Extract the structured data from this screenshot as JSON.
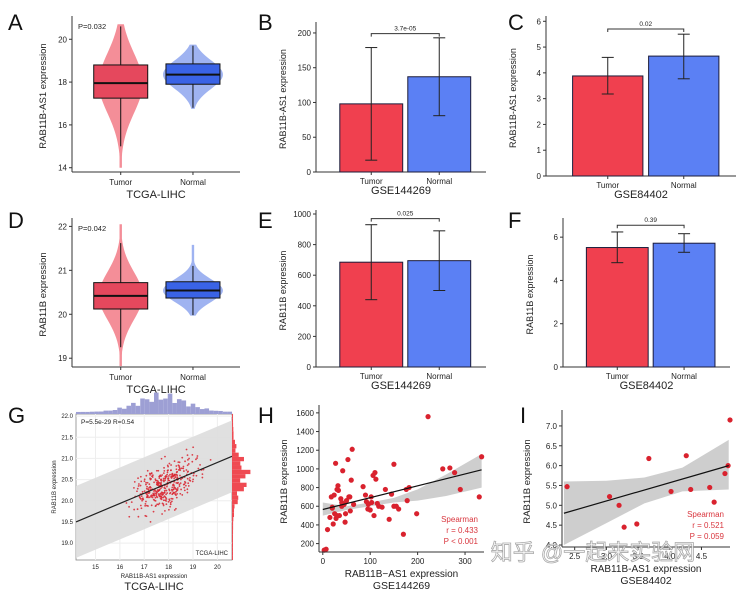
{
  "colors": {
    "tumor": "#f0404f",
    "normal": "#5b80f4",
    "tumor_violin": "#f27a86",
    "normal_violin": "#8ea6ee",
    "scatter": "#d9222e",
    "ci": "#cfcfcf",
    "annot": "#d9363e",
    "hist_top": "#9d9fd4",
    "hist_right": "#ef4a52"
  },
  "chart_data": [
    {
      "panel": "A",
      "type": "violin-box",
      "xlabel": "TCGA-LIHC",
      "ylabel": "RAB11B-AS1 expression",
      "annotation": "P=0.032",
      "categories": [
        "Tumor",
        "Normal"
      ],
      "ylim": [
        13.8,
        20.9
      ],
      "yticks": [
        14,
        16,
        18,
        20
      ],
      "groups": [
        {
          "name": "Tumor",
          "q1": 17.25,
          "median": 17.95,
          "q3": 18.8,
          "whisker_low": 15.0,
          "whisker_high": 20.6,
          "violin_min": 14.0,
          "violin_max": 20.7
        },
        {
          "name": "Normal",
          "q1": 17.9,
          "median": 18.35,
          "q3": 18.85,
          "whisker_low": 16.8,
          "whisker_high": 19.7,
          "violin_min": 16.75,
          "violin_max": 19.75
        }
      ]
    },
    {
      "panel": "B",
      "type": "bar",
      "xlabel": "GSE144269",
      "ylabel": "RAB11B-AS1 expression",
      "categories": [
        "Tumor",
        "Normal"
      ],
      "values": [
        98,
        137
      ],
      "error_low": [
        17,
        81
      ],
      "error_high": [
        179,
        193
      ],
      "ylim": [
        0,
        210
      ],
      "yticks": [
        0,
        50,
        100,
        150,
        200
      ],
      "significance": {
        "label": "3.7e-05",
        "y": 199
      }
    },
    {
      "panel": "C",
      "type": "bar",
      "xlabel": "GSE84402",
      "ylabel": "RAB11B-AS1 expression",
      "categories": [
        "Tumor",
        "Normal"
      ],
      "values": [
        3.88,
        4.65
      ],
      "error_low": [
        3.18,
        3.77
      ],
      "error_high": [
        4.6,
        5.5
      ],
      "ylim": [
        0,
        6.05
      ],
      "yticks": [
        0,
        1,
        2,
        3,
        4,
        5,
        6
      ],
      "significance": {
        "label": "0.02",
        "y": 5.7
      }
    },
    {
      "panel": "D",
      "type": "violin-box",
      "xlabel": "TCGA-LIHC",
      "ylabel": "RAB11B expression",
      "annotation": "P=0.042",
      "categories": [
        "Tumor",
        "Normal"
      ],
      "ylim": [
        18.8,
        22.1
      ],
      "yticks": [
        19,
        20,
        21,
        22
      ],
      "groups": [
        {
          "name": "Tumor",
          "q1": 20.12,
          "median": 20.42,
          "q3": 20.72,
          "whisker_low": 19.25,
          "whisker_high": 21.62,
          "violin_min": 18.82,
          "violin_max": 22.05
        },
        {
          "name": "Normal",
          "q1": 20.37,
          "median": 20.54,
          "q3": 20.74,
          "whisker_low": 19.98,
          "whisker_high": 21.1,
          "violin_min": 19.97,
          "violin_max": 21.58
        }
      ]
    },
    {
      "panel": "E",
      "type": "bar",
      "xlabel": "GSE144269",
      "ylabel": "RAB11B expression",
      "categories": [
        "Tumor",
        "Normal"
      ],
      "values": [
        685,
        695
      ],
      "error_low": [
        440,
        500
      ],
      "error_high": [
        930,
        890
      ],
      "ylim": [
        0,
        1000
      ],
      "yticks": [
        0,
        200,
        400,
        600,
        800,
        1000
      ],
      "significance": {
        "label": "0.025",
        "y": 970
      }
    },
    {
      "panel": "F",
      "type": "bar",
      "xlabel": "GSE84402",
      "ylabel": "RAB11B expression",
      "categories": [
        "Tumor",
        "Normal"
      ],
      "values": [
        5.52,
        5.72
      ],
      "error_low": [
        4.82,
        5.3
      ],
      "error_high": [
        6.24,
        6.16
      ],
      "ylim": [
        0,
        6.7
      ],
      "yticks": [
        0,
        2,
        4,
        6
      ],
      "significance": {
        "label": "0.39",
        "y": 6.55
      }
    },
    {
      "panel": "G",
      "type": "scatter",
      "title_bottom": "TCGA-LIHC",
      "xlabel": "RAB11B-AS1 expression",
      "ylabel": "RAB11B expression",
      "annotation": "P=5.5e-29 R=0.54",
      "inset_label": "TCGA-LIHC",
      "xlim": [
        14.2,
        20.6
      ],
      "ylim": [
        18.6,
        22.05
      ],
      "xticks": [
        15,
        16,
        17,
        18,
        19,
        20
      ],
      "yticks": [
        19.0,
        19.5,
        20.0,
        20.5,
        21.0,
        21.5,
        22.0
      ],
      "fit": {
        "x0": 14.2,
        "y0": 19.5,
        "x1": 20.6,
        "y1": 21.05
      },
      "band_halfwidth": 0.85,
      "n_points": 370,
      "marginal_histograms": true
    },
    {
      "panel": "H",
      "type": "scatter",
      "title_bottom": "GSE144269",
      "xlabel": "RAB11B−AS1 expression",
      "ylabel": "RAB11B expression",
      "legend": {
        "method": "Spearman",
        "r": "r = 0.433",
        "p": "P < 0.001"
      },
      "xlim": [
        -8,
        340
      ],
      "ylim": [
        110,
        1620
      ],
      "xticks": [
        0,
        100,
        200,
        300
      ],
      "yticks": [
        200,
        400,
        600,
        800,
        1000,
        1200,
        1400,
        1600
      ],
      "fit": {
        "x0": 0,
        "y0": 565,
        "x1": 335,
        "y1": 990
      },
      "ci": {
        "lower": [
          500,
          560,
          600,
          640,
          660,
          710,
          800
        ],
        "upper": [
          640,
          600,
          640,
          690,
          780,
          940,
          1160
        ],
        "x": [
          0,
          50,
          100,
          150,
          200,
          260,
          335
        ]
      },
      "points": [
        [
          3,
          130
        ],
        [
          7,
          140
        ],
        [
          10,
          350
        ],
        [
          15,
          480
        ],
        [
          18,
          700
        ],
        [
          20,
          590
        ],
        [
          20,
          580
        ],
        [
          22,
          410
        ],
        [
          24,
          720
        ],
        [
          25,
          520
        ],
        [
          27,
          1060
        ],
        [
          28,
          470
        ],
        [
          30,
          500
        ],
        [
          30,
          780
        ],
        [
          32,
          820
        ],
        [
          33,
          770
        ],
        [
          35,
          500
        ],
        [
          38,
          680
        ],
        [
          40,
          600
        ],
        [
          40,
          640
        ],
        [
          42,
          980
        ],
        [
          45,
          620
        ],
        [
          47,
          430
        ],
        [
          48,
          520
        ],
        [
          50,
          660
        ],
        [
          53,
          1100
        ],
        [
          55,
          700
        ],
        [
          57,
          700
        ],
        [
          58,
          550
        ],
        [
          60,
          880
        ],
        [
          62,
          1210
        ],
        [
          65,
          620
        ],
        [
          85,
          810
        ],
        [
          90,
          720
        ],
        [
          92,
          650
        ],
        [
          95,
          570
        ],
        [
          96,
          620
        ],
        [
          100,
          560
        ],
        [
          102,
          700
        ],
        [
          103,
          640
        ],
        [
          106,
          930
        ],
        [
          108,
          500
        ],
        [
          110,
          960
        ],
        [
          112,
          890
        ],
        [
          115,
          630
        ],
        [
          118,
          600
        ],
        [
          125,
          590
        ],
        [
          132,
          780
        ],
        [
          140,
          460
        ],
        [
          145,
          730
        ],
        [
          150,
          1050
        ],
        [
          150,
          600
        ],
        [
          155,
          600
        ],
        [
          160,
          570
        ],
        [
          170,
          300
        ],
        [
          176,
          780
        ],
        [
          178,
          660
        ],
        [
          182,
          800
        ],
        [
          198,
          520
        ],
        [
          222,
          1560
        ],
        [
          253,
          1000
        ],
        [
          268,
          1010
        ],
        [
          278,
          960
        ],
        [
          290,
          780
        ],
        [
          330,
          700
        ],
        [
          335,
          1130
        ]
      ]
    },
    {
      "panel": "I",
      "type": "scatter",
      "title_bottom": "GSE84402",
      "xlabel": "RAB11B-AS1 expression",
      "ylabel": "RAB11B expression",
      "legend": {
        "method": "Spearman",
        "r": "r = 0.521",
        "p": "P = 0.059"
      },
      "xlim": [
        2.3,
        4.95
      ],
      "ylim": [
        3.95,
        7.25
      ],
      "xticks": [
        2.5,
        3.0,
        3.5,
        4.0,
        4.5
      ],
      "yticks": [
        4.0,
        4.5,
        5.0,
        5.5,
        6.0,
        6.5,
        7.0
      ],
      "fit": {
        "x0": 2.33,
        "y0": 4.8,
        "x1": 4.93,
        "y1": 6.0
      },
      "ci": {
        "x": [
          2.33,
          3.0,
          3.6,
          4.2,
          4.93
        ],
        "lower": [
          4.0,
          4.55,
          5.05,
          5.35,
          5.4
        ],
        "upper": [
          5.6,
          5.62,
          5.7,
          5.95,
          6.65
        ]
      },
      "points": [
        [
          2.38,
          5.47
        ],
        [
          3.05,
          5.22
        ],
        [
          3.2,
          5.0
        ],
        [
          3.28,
          4.45
        ],
        [
          3.48,
          4.53
        ],
        [
          3.67,
          6.18
        ],
        [
          4.02,
          5.35
        ],
        [
          4.26,
          6.25
        ],
        [
          4.33,
          5.4
        ],
        [
          4.63,
          5.45
        ],
        [
          4.7,
          5.08
        ],
        [
          4.87,
          5.8
        ],
        [
          4.92,
          6.0
        ],
        [
          4.95,
          7.15
        ]
      ]
    }
  ],
  "panel_letters": [
    "A",
    "B",
    "C",
    "D",
    "E",
    "F",
    "G",
    "H",
    "I"
  ],
  "watermark": "知乎 @一起来实验网"
}
